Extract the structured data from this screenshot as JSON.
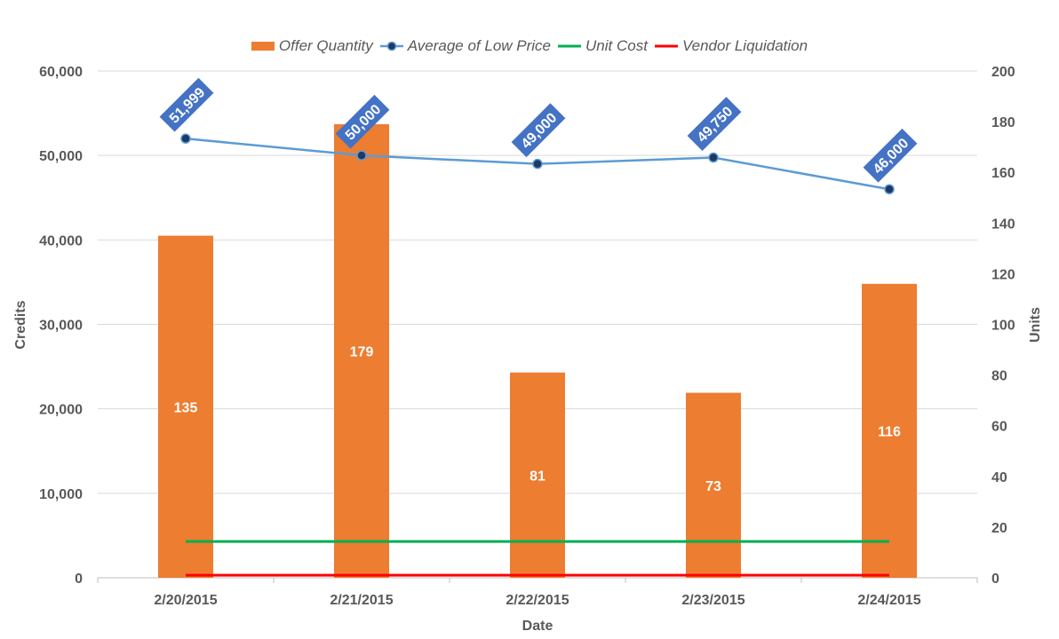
{
  "chart_data": {
    "type": "bar",
    "categories": [
      "2/20/2015",
      "2/21/2015",
      "2/22/2015",
      "2/23/2015",
      "2/24/2015"
    ],
    "xlabel": "Date",
    "ylabel_left": "Credits",
    "ylabel_right": "Units",
    "ylim_left": [
      0,
      60000
    ],
    "ylim_right": [
      0,
      200
    ],
    "yticks_left": [
      "0",
      "10,000",
      "20,000",
      "30,000",
      "40,000",
      "50,000",
      "60,000"
    ],
    "yticks_right": [
      "0",
      "20",
      "40",
      "60",
      "80",
      "100",
      "120",
      "140",
      "160",
      "180",
      "200"
    ],
    "grid": true,
    "legend_position": "top",
    "series": [
      {
        "name": "Offer Quantity",
        "type": "bar",
        "axis": "right",
        "color": "#ED7D31",
        "values": [
          135,
          179,
          81,
          73,
          116
        ],
        "labels": [
          "135",
          "179",
          "81",
          "73",
          "116"
        ]
      },
      {
        "name": "Average of Low Price",
        "type": "line",
        "axis": "left",
        "color": "#5B9BD5",
        "marker_color": "#1F3864",
        "values": [
          51999,
          50000,
          49000,
          49750,
          46000
        ],
        "labels": [
          "51,999",
          "50,000",
          "49,000",
          "49,750",
          "46,000"
        ],
        "label_bg": "#4472C4"
      },
      {
        "name": "Unit Cost",
        "type": "line",
        "axis": "left",
        "color": "#00B050",
        "values": [
          4300,
          4300,
          4300,
          4300,
          4300
        ]
      },
      {
        "name": "Vendor Liquidation",
        "type": "line",
        "axis": "left",
        "color": "#FF0000",
        "values": [
          300,
          300,
          300,
          300,
          300
        ]
      }
    ]
  }
}
